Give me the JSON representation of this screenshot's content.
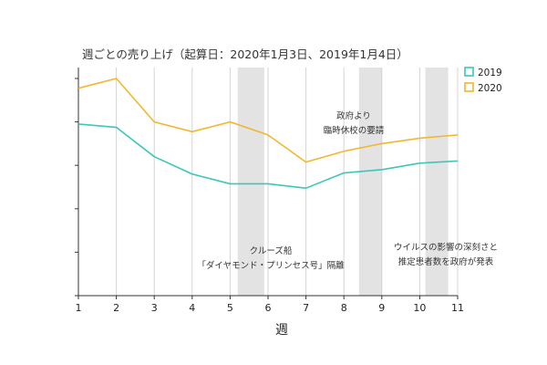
{
  "chart_data": {
    "type": "line",
    "title": "週ごとの売り上げ（起算日：2020年1月3日、2019年1月4日）",
    "xlabel": "週",
    "ylabel": "",
    "x": [
      1,
      2,
      3,
      4,
      5,
      6,
      7,
      8,
      9,
      10,
      11
    ],
    "xlim": [
      1,
      11
    ],
    "ylim": [
      0,
      100
    ],
    "y_tick_labels_shown": false,
    "grid": "vertical",
    "legend_position": "top-right",
    "series": [
      {
        "name": "2019",
        "color": "#3cc7b8",
        "values": [
          79,
          77.5,
          64,
          56,
          51.5,
          51.5,
          49.5,
          56.5,
          58,
          61,
          62
        ]
      },
      {
        "name": "2020",
        "color": "#f2b630",
        "values": [
          95.5,
          100,
          80,
          75.5,
          80,
          74,
          61.5,
          66.5,
          70,
          72.5,
          74
        ]
      }
    ],
    "shaded_regions": [
      [
        5.2,
        5.9
      ],
      [
        8.4,
        9.0
      ],
      [
        10.15,
        10.75
      ]
    ],
    "annotations": [
      {
        "lines": [
          "クルーズ船",
          "「ダイヤモンド・プリンセス号」隔離"
        ]
      },
      {
        "lines": [
          "政府より",
          "臨時休校の要請"
        ]
      },
      {
        "lines": [
          "ウイルスの影響の深刻さと",
          "推定患者数を政府が発表"
        ]
      }
    ]
  }
}
